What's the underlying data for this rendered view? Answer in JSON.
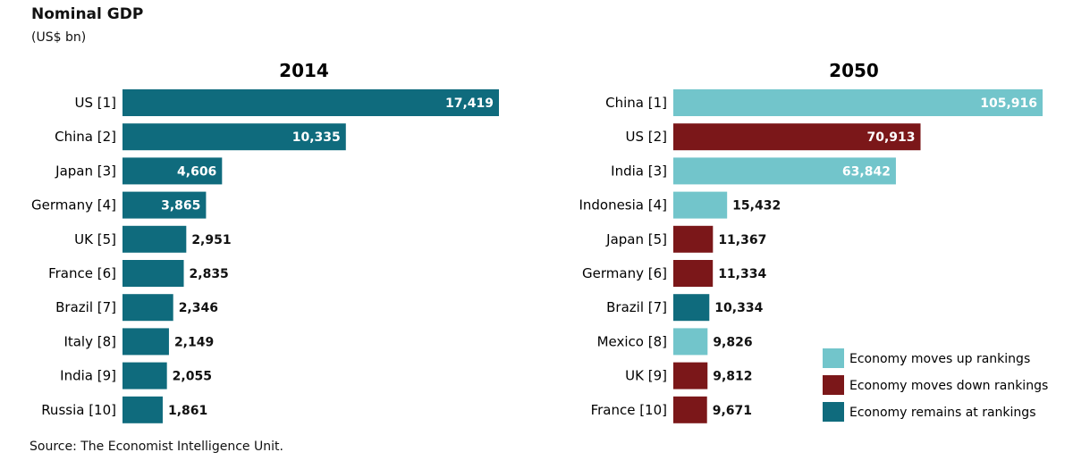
{
  "title": "Nominal GDP",
  "units": "(US$ bn)",
  "source": "Source: The Economist Intelligence Unit.",
  "colors": {
    "up": "#72c5cb",
    "down": "#7b1719",
    "same": "#0f6b7d"
  },
  "chart_data": [
    {
      "type": "bar",
      "orientation": "horizontal",
      "title": "2014",
      "categories": [
        "US [1]",
        "China [2]",
        "Japan [3]",
        "Germany [4]",
        "UK [5]",
        "France [6]",
        "Brazil [7]",
        "Italy [8]",
        "India [9]",
        "Russia [10]"
      ],
      "values": [
        17419,
        10335,
        4606,
        3865,
        2951,
        2835,
        2346,
        2149,
        2055,
        1861
      ],
      "labels": [
        "17,419",
        "10,335",
        "4,606",
        "3,865",
        "2,951",
        "2,835",
        "2,346",
        "2,149",
        "2,055",
        "1,861"
      ],
      "status": [
        "same",
        "same",
        "same",
        "same",
        "same",
        "same",
        "same",
        "same",
        "same",
        "same"
      ]
    },
    {
      "type": "bar",
      "orientation": "horizontal",
      "title": "2050",
      "categories": [
        "China [1]",
        "US [2]",
        "India [3]",
        "Indonesia [4]",
        "Japan [5]",
        "Germany [6]",
        "Brazil [7]",
        "Mexico [8]",
        "UK [9]",
        "France [10]"
      ],
      "values": [
        105916,
        70913,
        63842,
        15432,
        11367,
        11334,
        10334,
        9826,
        9812,
        9671
      ],
      "labels": [
        "105,916",
        "70,913",
        "63,842",
        "15,432",
        "11,367",
        "11,334",
        "10,334",
        "9,826",
        "9,812",
        "9,671"
      ],
      "status": [
        "up",
        "down",
        "up",
        "up",
        "down",
        "down",
        "same",
        "up",
        "down",
        "down"
      ]
    }
  ],
  "legend": [
    {
      "key": "up",
      "label": "Economy moves up rankings"
    },
    {
      "key": "down",
      "label": "Economy moves down rankings"
    },
    {
      "key": "same",
      "label": "Economy remains at rankings"
    }
  ]
}
